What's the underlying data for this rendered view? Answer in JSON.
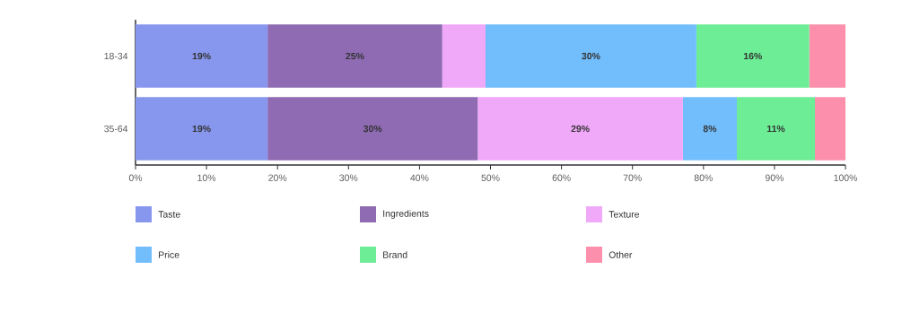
{
  "chart_data": {
    "type": "bar",
    "orientation": "horizontal",
    "stacked": true,
    "categories": [
      "18-34",
      "35-64"
    ],
    "series": [
      {
        "name": "Taste",
        "color": "#8797ee",
        "values": [
          18.6,
          18.6
        ],
        "value_labels": [
          "19%",
          "19%"
        ]
      },
      {
        "name": "Ingredients",
        "color": "#8f6bb3",
        "values": [
          24.6,
          29.6
        ],
        "value_labels": [
          "25%",
          "30%"
        ]
      },
      {
        "name": "Texture",
        "color": "#f0a8f8",
        "values": [
          6.1,
          28.9
        ],
        "value_labels": [
          null,
          "29%"
        ]
      },
      {
        "name": "Price",
        "color": "#72bdfb",
        "values": [
          29.7,
          7.6
        ],
        "value_labels": [
          "30%",
          "8%"
        ]
      },
      {
        "name": "Brand",
        "color": "#6ced96",
        "values": [
          15.9,
          11.0
        ],
        "value_labels": [
          "16%",
          "11%"
        ]
      },
      {
        "name": "Other",
        "color": "#fc8fab",
        "values": [
          5.1,
          4.3
        ],
        "value_labels": [
          null,
          null
        ]
      }
    ],
    "xlim": [
      0,
      100
    ],
    "xticks": [
      {
        "value": 0,
        "label": "0%"
      },
      {
        "value": 10,
        "label": "10%"
      },
      {
        "value": 20,
        "label": "20%"
      },
      {
        "value": 30,
        "label": "30%"
      },
      {
        "value": 40,
        "label": "40%"
      },
      {
        "value": 50,
        "label": "50%"
      },
      {
        "value": 60,
        "label": "60%"
      },
      {
        "value": 70,
        "label": "70%"
      },
      {
        "value": 80,
        "label": "80%"
      },
      {
        "value": 90,
        "label": "90%"
      },
      {
        "value": 100,
        "label": "100%"
      }
    ],
    "grid": false,
    "legend": "bottom"
  }
}
